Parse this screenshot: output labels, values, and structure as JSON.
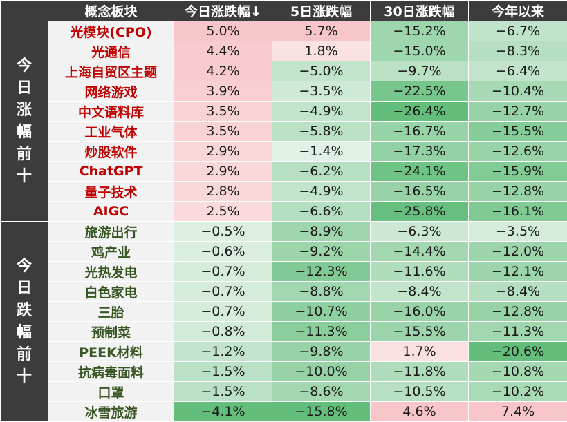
{
  "chart_data": {
    "type": "table",
    "columns": [
      "概念板块",
      "今日涨跌幅↓",
      "5日涨跌幅",
      "30日涨跌幅",
      "今年以来"
    ],
    "groups": [
      {
        "label": "今日涨幅前十",
        "label_chars": [
          "今",
          "日",
          "涨",
          "幅",
          "前",
          "十"
        ],
        "rows": [
          {
            "name": "光模块(CPO)",
            "values": [
              5.0,
              5.7,
              -15.2,
              -6.7
            ],
            "display": [
              "5.0%",
              "5.7%",
              "−15.2%",
              "−6.7%"
            ]
          },
          {
            "name": "光通信",
            "values": [
              4.4,
              1.8,
              -15.0,
              -8.3
            ],
            "display": [
              "4.4%",
              "1.8%",
              "−15.0%",
              "−8.3%"
            ]
          },
          {
            "name": "上海自贸区主题",
            "values": [
              4.2,
              -5.0,
              -9.7,
              -6.4
            ],
            "display": [
              "4.2%",
              "−5.0%",
              "−9.7%",
              "−6.4%"
            ]
          },
          {
            "name": "网络游戏",
            "values": [
              3.9,
              -3.5,
              -22.5,
              -10.4
            ],
            "display": [
              "3.9%",
              "−3.5%",
              "−22.5%",
              "−10.4%"
            ]
          },
          {
            "name": "中文语料库",
            "values": [
              3.5,
              -4.9,
              -26.4,
              -12.7
            ],
            "display": [
              "3.5%",
              "−4.9%",
              "−26.4%",
              "−12.7%"
            ]
          },
          {
            "name": "工业气体",
            "values": [
              3.5,
              -5.8,
              -16.7,
              -15.5
            ],
            "display": [
              "3.5%",
              "−5.8%",
              "−16.7%",
              "−15.5%"
            ]
          },
          {
            "name": "炒股软件",
            "values": [
              2.9,
              -1.4,
              -17.3,
              -12.6
            ],
            "display": [
              "2.9%",
              "−1.4%",
              "−17.3%",
              "−12.6%"
            ]
          },
          {
            "name": "ChatGPT",
            "values": [
              2.9,
              -6.2,
              -24.1,
              -15.9
            ],
            "display": [
              "2.9%",
              "−6.2%",
              "−24.1%",
              "−15.9%"
            ]
          },
          {
            "name": "量子技术",
            "values": [
              2.8,
              -4.9,
              -16.5,
              -12.8
            ],
            "display": [
              "2.8%",
              "−4.9%",
              "−16.5%",
              "−12.8%"
            ]
          },
          {
            "name": "AIGC",
            "values": [
              2.5,
              -6.6,
              -25.8,
              -16.1
            ],
            "display": [
              "2.5%",
              "−6.6%",
              "−25.8%",
              "−16.1%"
            ]
          }
        ]
      },
      {
        "label": "今日跌幅前十",
        "label_chars": [
          "今",
          "日",
          "跌",
          "幅",
          "前",
          "十"
        ],
        "rows": [
          {
            "name": "旅游出行",
            "values": [
              -0.5,
              -8.9,
              -6.3,
              -3.5
            ],
            "display": [
              "−0.5%",
              "−8.9%",
              "−6.3%",
              "−3.5%"
            ]
          },
          {
            "name": "鸡产业",
            "values": [
              -0.6,
              -9.2,
              -14.4,
              -12.0
            ],
            "display": [
              "−0.6%",
              "−9.2%",
              "−14.4%",
              "−12.0%"
            ]
          },
          {
            "name": "光热发电",
            "values": [
              -0.7,
              -12.3,
              -11.6,
              -12.1
            ],
            "display": [
              "−0.7%",
              "−12.3%",
              "−11.6%",
              "−12.1%"
            ]
          },
          {
            "name": "白色家电",
            "values": [
              -0.7,
              -8.8,
              -8.4,
              -8.4
            ],
            "display": [
              "−0.7%",
              "−8.8%",
              "−8.4%",
              "−8.4%"
            ]
          },
          {
            "name": "三胎",
            "values": [
              -0.7,
              -10.7,
              -16.0,
              -12.8
            ],
            "display": [
              "−0.7%",
              "−10.7%",
              "−16.0%",
              "−12.8%"
            ]
          },
          {
            "name": "预制菜",
            "values": [
              -0.8,
              -11.3,
              -15.5,
              -11.3
            ],
            "display": [
              "−0.8%",
              "−11.3%",
              "−15.5%",
              "−11.3%"
            ]
          },
          {
            "name": "PEEK材料",
            "values": [
              -1.2,
              -9.8,
              1.7,
              -20.6
            ],
            "display": [
              "−1.2%",
              "−9.8%",
              "1.7%",
              "−20.6%"
            ]
          },
          {
            "name": "抗病毒面料",
            "values": [
              -1.5,
              -10.0,
              -11.8,
              -10.8
            ],
            "display": [
              "−1.5%",
              "−10.0%",
              "−11.8%",
              "−10.8%"
            ]
          },
          {
            "name": "口罩",
            "values": [
              -1.5,
              -8.6,
              -10.5,
              -10.2
            ],
            "display": [
              "−1.5%",
              "−8.6%",
              "−10.5%",
              "−10.2%"
            ]
          },
          {
            "name": "冰雪旅游",
            "values": [
              -4.1,
              -15.8,
              4.6,
              7.4
            ],
            "display": [
              "−4.1%",
              "−15.8%",
              "4.6%",
              "7.4%"
            ]
          }
        ]
      }
    ],
    "colors": {
      "header_bg": "#3c3c3c",
      "header_text": "#ffffff",
      "name_bg": "#f2f2f2",
      "up_text": "#c00000",
      "down_text": "#375623",
      "positive_fill": "#f8c6c9",
      "negative_fill": "#63be7b",
      "neutral_fill": "#fcfcfc"
    }
  }
}
